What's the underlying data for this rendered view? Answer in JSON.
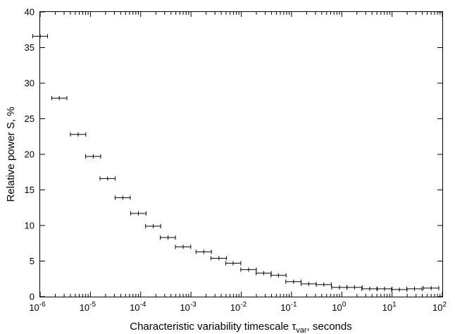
{
  "chart_data": {
    "type": "scatter",
    "xscale": "log",
    "xlim": [
      1e-06,
      100
    ],
    "ylim": [
      0,
      40
    ],
    "x_ticks": [
      {
        "base": "10",
        "exp": "-6"
      },
      {
        "base": "10",
        "exp": "-5"
      },
      {
        "base": "10",
        "exp": "-4"
      },
      {
        "base": "10",
        "exp": "-3"
      },
      {
        "base": "10",
        "exp": "-2"
      },
      {
        "base": "10",
        "exp": "-1"
      },
      {
        "base": "10",
        "exp": "0"
      },
      {
        "base": "10",
        "exp": "1"
      },
      {
        "base": "10",
        "exp": "2"
      }
    ],
    "y_ticks": [
      "0",
      "5",
      "10",
      "15",
      "20",
      "25",
      "30",
      "35",
      "40"
    ],
    "xlabel": {
      "before": "Characteristic variability timescale ",
      "symbol": "τ",
      "subscript": "var",
      "after": ", seconds"
    },
    "ylabel": "Relative power S, %",
    "grid": false,
    "points": [
      {
        "x": 1e-06,
        "xmin": 7.1e-07,
        "xmax": 1.4e-06,
        "y": 36.6
      },
      {
        "x": 2.4e-06,
        "xmin": 1.7e-06,
        "xmax": 3.4e-06,
        "y": 27.9
      },
      {
        "x": 5.7e-06,
        "xmin": 4e-06,
        "xmax": 8.1e-06,
        "y": 22.8
      },
      {
        "x": 1.14e-05,
        "xmin": 8e-06,
        "xmax": 1.6e-05,
        "y": 19.7
      },
      {
        "x": 2.2e-05,
        "xmin": 1.55e-05,
        "xmax": 3.1e-05,
        "y": 16.6
      },
      {
        "x": 4.4e-05,
        "xmin": 3.1e-05,
        "xmax": 6.2e-05,
        "y": 13.9
      },
      {
        "x": 9e-05,
        "xmin": 6.3e-05,
        "xmax": 0.000128,
        "y": 11.7
      },
      {
        "x": 0.000178,
        "xmin": 0.000125,
        "xmax": 0.00025,
        "y": 9.9
      },
      {
        "x": 0.00035,
        "xmin": 0.000245,
        "xmax": 0.00049,
        "y": 8.3
      },
      {
        "x": 0.0007,
        "xmin": 0.00049,
        "xmax": 0.00099,
        "y": 7.0
      },
      {
        "x": 0.0018,
        "xmin": 0.00126,
        "xmax": 0.00255,
        "y": 6.3
      },
      {
        "x": 0.0036,
        "xmin": 0.0025,
        "xmax": 0.0051,
        "y": 5.4
      },
      {
        "x": 0.0069,
        "xmin": 0.0049,
        "xmax": 0.0098,
        "y": 4.7
      },
      {
        "x": 0.014,
        "xmin": 0.0098,
        "xmax": 0.02,
        "y": 3.8
      },
      {
        "x": 0.028,
        "xmin": 0.0198,
        "xmax": 0.0395,
        "y": 3.3
      },
      {
        "x": 0.055,
        "xmin": 0.039,
        "xmax": 0.078,
        "y": 3.0
      },
      {
        "x": 0.11,
        "xmin": 0.077,
        "xmax": 0.155,
        "y": 2.1
      },
      {
        "x": 0.22,
        "xmin": 0.155,
        "xmax": 0.31,
        "y": 1.8
      },
      {
        "x": 0.44,
        "xmin": 0.31,
        "xmax": 0.62,
        "y": 1.7
      },
      {
        "x": 0.9,
        "xmin": 0.63,
        "xmax": 1.27,
        "y": 1.3
      },
      {
        "x": 1.8,
        "xmin": 1.26,
        "xmax": 2.55,
        "y": 1.3
      },
      {
        "x": 3.6,
        "xmin": 2.5,
        "xmax": 5.1,
        "y": 1.1
      },
      {
        "x": 7.1,
        "xmin": 5.0,
        "xmax": 10.0,
        "y": 1.1
      },
      {
        "x": 14.0,
        "xmin": 9.8,
        "xmax": 19.8,
        "y": 1.0
      },
      {
        "x": 28.0,
        "xmin": 19.6,
        "xmax": 39.5,
        "y": 1.1
      },
      {
        "x": 60.0,
        "xmin": 42.0,
        "xmax": 85.0,
        "y": 1.2
      }
    ]
  }
}
